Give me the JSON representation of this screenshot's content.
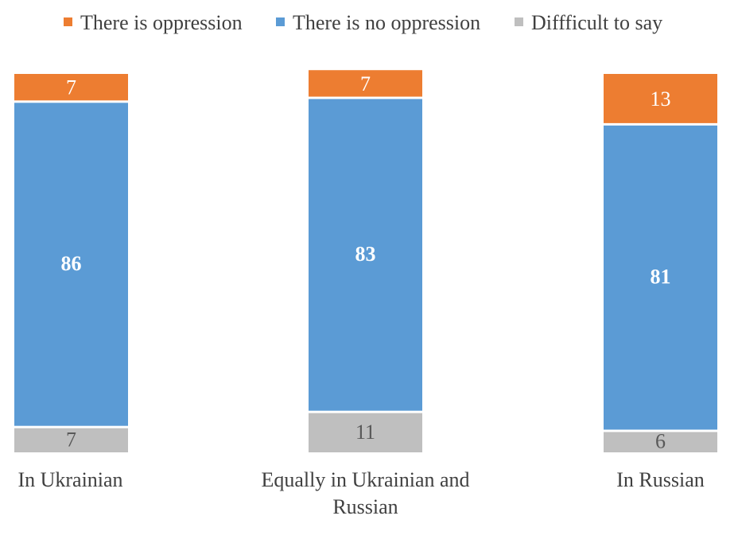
{
  "chart_data": {
    "type": "bar",
    "stacked": true,
    "normalized": true,
    "categories": [
      [
        "In Ukrainian"
      ],
      [
        "Equally in Ukrainian and",
        "Russian"
      ],
      [
        "In Russian"
      ]
    ],
    "series": [
      {
        "name": "There is oppression",
        "color": "#ED7D31",
        "label_color": "#FFFFFF",
        "bold": false,
        "values": [
          7,
          7,
          13
        ]
      },
      {
        "name": "There is no oppression",
        "color": "#5B9BD5",
        "label_color": "#FFFFFF",
        "bold": true,
        "values": [
          86,
          83,
          81
        ]
      },
      {
        "name": "Diffficult to say",
        "color": "#BFBFBF",
        "label_color": "#595959",
        "bold": false,
        "values": [
          7,
          11,
          6
        ]
      }
    ],
    "stack_order_bottom_to_top": [
      "Diffficult to say",
      "There is no oppression",
      "There is oppression"
    ],
    "title": "",
    "xlabel": "",
    "ylabel": "",
    "legend_position": "top"
  }
}
